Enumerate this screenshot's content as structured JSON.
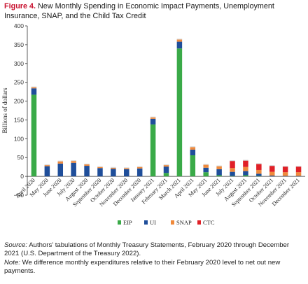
{
  "figure": {
    "number": "Figure 4.",
    "title": "New Monthly Spending in Economic Impact Payments, Unemployment Insurance, SNAP, and the Child Tax Credit"
  },
  "notes": {
    "source_lead": "Source:",
    "source_text": "Authors’ tabulations of Monthly Treasury Statements, February 2020 through December 2021 (U.S. Department of the Treasury 2022).",
    "note_lead": "Note:",
    "note_text": "We difference monthly expenditures relative to their February 2020 level to net out new payments."
  },
  "chart_data": {
    "type": "bar",
    "stacked": true,
    "ylabel": "Billions of dollars",
    "ylim": [
      -50,
      400
    ],
    "yticks": [
      -50,
      0,
      50,
      100,
      150,
      200,
      250,
      300,
      350,
      400
    ],
    "grid": false,
    "legend_position": "bottom-center",
    "categories": [
      "April 2020",
      "May 2020",
      "June 2020",
      "July 2020",
      "August 2020",
      "September 2020",
      "October 2020",
      "November 2020",
      "December 2020",
      "January 2021",
      "February 2021",
      "March 2021",
      "April 2021",
      "May 2021",
      "June 2021",
      "July 2021",
      "August 2021",
      "September 2021",
      "October 2021",
      "November 2021",
      "December 2021"
    ],
    "series": [
      {
        "name": "EIP",
        "color": "#3aaa48",
        "values": [
          217,
          0,
          0,
          0,
          0,
          0,
          0,
          0,
          0,
          138,
          9,
          340,
          56,
          11,
          3,
          1,
          3,
          1,
          0,
          0,
          0
        ]
      },
      {
        "name": "UI",
        "color": "#1f4e9a",
        "values": [
          17,
          27,
          34,
          36,
          28,
          22,
          20,
          19,
          21,
          15,
          17,
          18,
          15,
          12,
          16,
          11,
          11,
          6,
          2,
          1,
          1
        ]
      },
      {
        "name": "SNAP",
        "color": "#f08a3c",
        "values": [
          3,
          3,
          6,
          5,
          4,
          3,
          3,
          3,
          4,
          4,
          4,
          6,
          7,
          8,
          8,
          10,
          11,
          10,
          10,
          10,
          10
        ]
      },
      {
        "name": "CTC",
        "color": "#e02027",
        "values": [
          0,
          0,
          0,
          0,
          0,
          0,
          0,
          0,
          0,
          0,
          0,
          0,
          0,
          0,
          0,
          19,
          17,
          16,
          16,
          15,
          15
        ]
      }
    ]
  }
}
